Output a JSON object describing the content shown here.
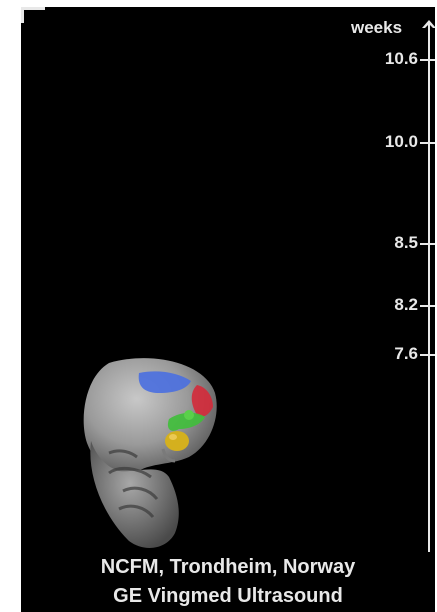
{
  "axis": {
    "unit": "weeks",
    "ticks": [
      {
        "label": "10.6",
        "value": 10.6
      },
      {
        "label": "10.0",
        "value": 10.0
      },
      {
        "label": "8.5",
        "value": 8.5
      },
      {
        "label": "8.2",
        "value": 8.2
      },
      {
        "label": "7.6",
        "value": 7.6
      }
    ]
  },
  "credits": {
    "line1": "NCFM, Trondheim, Norway",
    "line2": "GE Vingmed Ultrasound"
  },
  "colors": {
    "background": "#000000",
    "text": "#e8e8e8",
    "tissue": "#9a9a9a",
    "ventricle_blue": "#4a6fe0",
    "ventricle_red": "#d42a3a",
    "ventricle_green": "#3fbf3a",
    "ventricle_yellow": "#d4b01e"
  }
}
